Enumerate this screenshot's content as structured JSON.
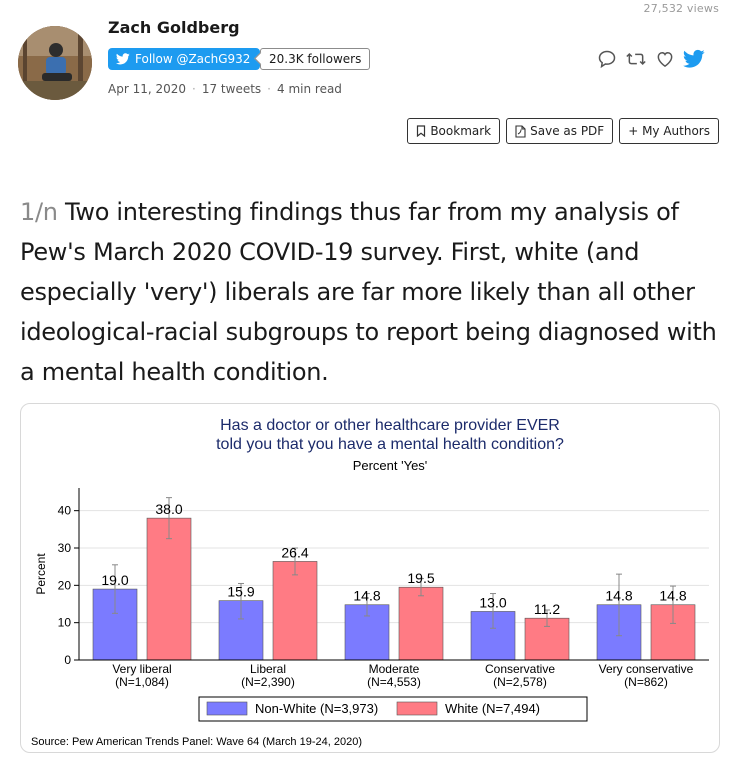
{
  "header": {
    "views": "27,532 views",
    "author_name": "Zach Goldberg",
    "follow_label": "Follow @ZachG932",
    "followers": "20.3K followers",
    "date": "Apr 11, 2020",
    "tweets": "17 tweets",
    "read_time": "4 min read"
  },
  "toolbar": {
    "bookmark": "Bookmark",
    "save_pdf": "Save as PDF",
    "my_authors": "+ My Authors"
  },
  "tweet": {
    "number": "1/n",
    "text": " Two interesting findings thus far from my analysis of Pew's March 2020 COVID-19 survey. First, white (and especially 'very') liberals are far more likely than all other ideological-racial subgroups to report being diagnosed with a mental health condition."
  },
  "colors": {
    "twitter_blue": "#1d9bf0",
    "non_white": "#7b7bff",
    "white": "#ff7b84",
    "title_navy": "#1c2b6b"
  },
  "chart_data": {
    "type": "bar",
    "title_line1": "Has a doctor or other healthcare provider EVER",
    "title_line2": "told you that you have a mental health condition?",
    "subtitle": "Percent 'Yes'",
    "ylabel": "Percent",
    "ylim": [
      0,
      45
    ],
    "yticks": [
      0,
      10,
      20,
      30,
      40
    ],
    "categories": [
      "Very liberal",
      "Liberal",
      "Moderate",
      "Conservative",
      "Very conservative"
    ],
    "category_n": [
      "(N=1,084)",
      "(N=2,390)",
      "(N=4,553)",
      "(N=2,578)",
      "(N=862)"
    ],
    "series": [
      {
        "name": "Non-White (N=3,973)",
        "color": "#7b7bff",
        "values": [
          19.0,
          15.9,
          14.8,
          13.0,
          14.8
        ],
        "labels": [
          "19.0",
          "15.9",
          "14.8",
          "13.0",
          "14.8"
        ],
        "ci_low": [
          12.5,
          11.0,
          11.8,
          8.5,
          6.5
        ],
        "ci_high": [
          25.5,
          20.5,
          17.8,
          17.8,
          23.0
        ]
      },
      {
        "name": "White (N=7,494)",
        "color": "#ff7b84",
        "values": [
          38.0,
          26.4,
          19.5,
          11.2,
          14.8
        ],
        "labels": [
          "38.0",
          "26.4",
          "19.5",
          "11.2",
          "14.8"
        ],
        "ci_low": [
          32.5,
          22.8,
          17.2,
          9.0,
          9.8
        ],
        "ci_high": [
          43.5,
          30.0,
          21.8,
          13.4,
          19.8
        ]
      }
    ],
    "legend_position": "bottom",
    "grid": "horizontal",
    "source": "Source: Pew American Trends Panel: Wave 64 (March 19-24, 2020)"
  }
}
